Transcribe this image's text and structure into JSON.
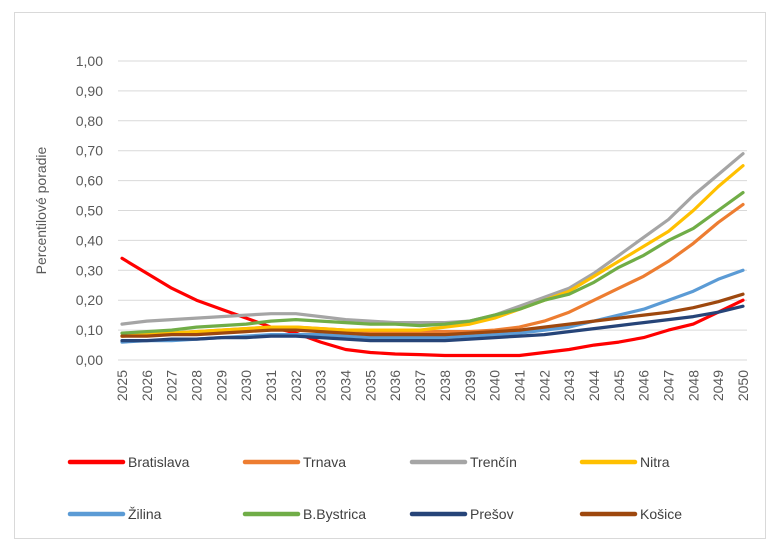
{
  "chart_data": {
    "type": "line",
    "title": "",
    "xlabel": "",
    "ylabel": "Percentilové poradie",
    "ylim": [
      0,
      1
    ],
    "y_ticks": [
      "0,00",
      "0,10",
      "0,20",
      "0,30",
      "0,40",
      "0,50",
      "0,60",
      "0,70",
      "0,80",
      "0,90",
      "1,00"
    ],
    "grid": true,
    "legend_position": "bottom",
    "categories": [
      "2025",
      "2026",
      "2027",
      "2028",
      "2029",
      "2030",
      "2031",
      "2032",
      "2033",
      "2034",
      "2035",
      "2036",
      "2037",
      "2038",
      "2039",
      "2040",
      "2041",
      "2042",
      "2043",
      "2044",
      "2045",
      "2046",
      "2047",
      "2048",
      "2049",
      "2050"
    ],
    "series": [
      {
        "name": "Bratislava",
        "color": "#ff0000",
        "values": [
          0.34,
          0.29,
          0.24,
          0.2,
          0.17,
          0.14,
          0.11,
          0.09,
          0.06,
          0.035,
          0.025,
          0.02,
          0.018,
          0.015,
          0.015,
          0.015,
          0.015,
          0.025,
          0.035,
          0.05,
          0.06,
          0.075,
          0.1,
          0.12,
          0.16,
          0.2
        ]
      },
      {
        "name": "Trnava",
        "color": "#ed7d31",
        "values": [
          0.08,
          0.085,
          0.09,
          0.095,
          0.1,
          0.105,
          0.11,
          0.11,
          0.105,
          0.1,
          0.095,
          0.095,
          0.095,
          0.095,
          0.095,
          0.1,
          0.11,
          0.13,
          0.16,
          0.2,
          0.24,
          0.28,
          0.33,
          0.39,
          0.46,
          0.52
        ]
      },
      {
        "name": "Trenčín",
        "color": "#a5a5a5",
        "values": [
          0.12,
          0.13,
          0.135,
          0.14,
          0.145,
          0.15,
          0.155,
          0.155,
          0.145,
          0.135,
          0.13,
          0.125,
          0.125,
          0.125,
          0.13,
          0.15,
          0.18,
          0.21,
          0.24,
          0.29,
          0.35,
          0.41,
          0.47,
          0.55,
          0.62,
          0.69
        ]
      },
      {
        "name": "Nitra",
        "color": "#ffc000",
        "values": [
          0.08,
          0.085,
          0.09,
          0.095,
          0.1,
          0.105,
          0.11,
          0.11,
          0.105,
          0.1,
          0.1,
          0.1,
          0.1,
          0.11,
          0.12,
          0.14,
          0.17,
          0.2,
          0.23,
          0.28,
          0.33,
          0.38,
          0.43,
          0.5,
          0.58,
          0.65
        ]
      },
      {
        "name": "Žilina",
        "color": "#5b9bd5",
        "values": [
          0.06,
          0.065,
          0.065,
          0.07,
          0.075,
          0.08,
          0.085,
          0.085,
          0.085,
          0.08,
          0.075,
          0.075,
          0.075,
          0.075,
          0.08,
          0.085,
          0.09,
          0.1,
          0.11,
          0.13,
          0.15,
          0.17,
          0.2,
          0.23,
          0.27,
          0.3
        ]
      },
      {
        "name": "B.Bystrica",
        "color": "#70ad47",
        "values": [
          0.09,
          0.095,
          0.1,
          0.11,
          0.115,
          0.12,
          0.13,
          0.135,
          0.13,
          0.125,
          0.12,
          0.12,
          0.115,
          0.12,
          0.13,
          0.15,
          0.17,
          0.2,
          0.22,
          0.26,
          0.31,
          0.35,
          0.4,
          0.44,
          0.5,
          0.56
        ]
      },
      {
        "name": "Prešov",
        "color": "#264478",
        "values": [
          0.065,
          0.065,
          0.07,
          0.07,
          0.075,
          0.075,
          0.08,
          0.08,
          0.075,
          0.07,
          0.065,
          0.065,
          0.065,
          0.065,
          0.07,
          0.075,
          0.08,
          0.085,
          0.095,
          0.105,
          0.115,
          0.125,
          0.135,
          0.145,
          0.16,
          0.18
        ]
      },
      {
        "name": "Košice",
        "color": "#9e480e",
        "values": [
          0.08,
          0.08,
          0.085,
          0.085,
          0.09,
          0.095,
          0.1,
          0.1,
          0.095,
          0.09,
          0.085,
          0.085,
          0.085,
          0.085,
          0.09,
          0.095,
          0.1,
          0.11,
          0.12,
          0.13,
          0.14,
          0.15,
          0.16,
          0.175,
          0.195,
          0.22
        ]
      }
    ]
  }
}
